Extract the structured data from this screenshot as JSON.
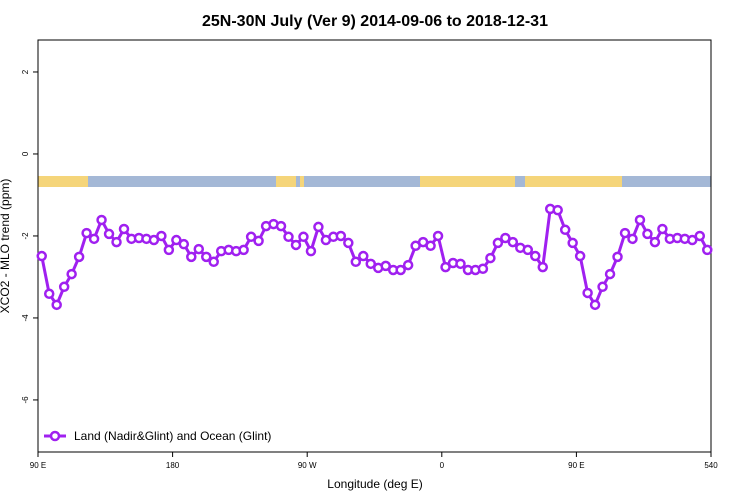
{
  "chart_data": {
    "type": "line",
    "title": "25N-30N July (Ver 9)   2014-09-06 to 2018-12-31",
    "x_label": "Longitude (deg E)",
    "y_label": "XCO2 - MLO trend (ppm)",
    "legend": "bottom-left",
    "xlim": [
      90,
      540
    ],
    "ylim": [
      -7.27,
      2.78
    ],
    "xticks": [
      {
        "value": 90,
        "label": "90 E"
      },
      180,
      {
        "value": 270,
        "label": "90 W"
      },
      {
        "value": 360,
        "label": "0"
      },
      {
        "value": 450,
        "label": "90 E"
      },
      540
    ],
    "yticks": [
      -6,
      -4,
      -2,
      0,
      2
    ],
    "x": [
      92.5,
      97.5,
      102.5,
      107.5,
      112.5,
      117.5,
      122.5,
      127.5,
      132.5,
      137.5,
      142.5,
      147.5,
      152.5,
      157.5,
      162.5,
      167.5,
      172.5,
      177.5,
      182.5,
      187.5,
      192.5,
      197.5,
      202.5,
      207.5,
      212.5,
      217.5,
      222.5,
      227.5,
      232.5,
      237.5,
      242.5,
      247.5,
      252.5,
      257.5,
      262.5,
      267.5,
      272.5,
      277.5,
      282.5,
      287.5,
      292.5,
      297.5,
      302.5,
      307.5,
      312.5,
      317.5,
      322.5,
      327.5,
      332.5,
      337.5,
      342.5,
      347.5,
      352.5,
      357.5,
      362.5,
      367.5,
      372.5,
      377.5,
      382.5,
      387.5,
      392.5,
      397.5,
      402.5,
      407.5,
      412.5,
      417.5,
      422.5,
      427.5,
      432.5,
      437.5,
      442.5,
      447.5,
      452.5,
      457.5,
      462.5,
      467.5,
      472.5,
      477.5,
      482.5,
      487.5,
      492.5,
      497.5,
      502.5,
      507.5,
      512.5,
      517.5,
      522.5,
      527.5,
      532.5,
      537.5
    ],
    "series": [
      {
        "name": "Land (Nadir&Glint) and Ocean (Glint)",
        "color": "#a020f0",
        "values": [
          -2.49,
          -3.41,
          -3.68,
          -3.24,
          -2.93,
          -2.51,
          -1.93,
          -2.07,
          -1.61,
          -1.95,
          -2.15,
          -1.83,
          -2.07,
          -2.05,
          -2.07,
          -2.1,
          -2.0,
          -2.34,
          -2.1,
          -2.2,
          -2.51,
          -2.32,
          -2.51,
          -2.63,
          -2.37,
          -2.34,
          -2.37,
          -2.34,
          -2.02,
          -2.12,
          -1.76,
          -1.71,
          -1.76,
          -2.02,
          -2.22,
          -2.02,
          -2.37,
          -1.78,
          -2.1,
          -2.02,
          -2.0,
          -2.17,
          -2.63,
          -2.49,
          -2.68,
          -2.78,
          -2.73,
          -2.83,
          -2.83,
          -2.71,
          -2.24,
          -2.15,
          -2.24,
          -2.0,
          -2.76,
          -2.66,
          -2.68,
          -2.83,
          -2.83,
          -2.8,
          -2.54,
          -2.17,
          -2.05,
          -2.15,
          -2.29,
          -2.34,
          -2.49,
          -2.76,
          -1.34,
          -1.37,
          -1.85,
          -2.17,
          -2.49,
          -3.39,
          -3.68,
          -3.24,
          -2.93,
          -2.51,
          -1.93,
          -2.07,
          -1.61,
          -1.95,
          -2.15,
          -1.83,
          -2.07,
          -2.05,
          -2.07,
          -2.1,
          -2.0,
          -2.34
        ]
      }
    ]
  }
}
